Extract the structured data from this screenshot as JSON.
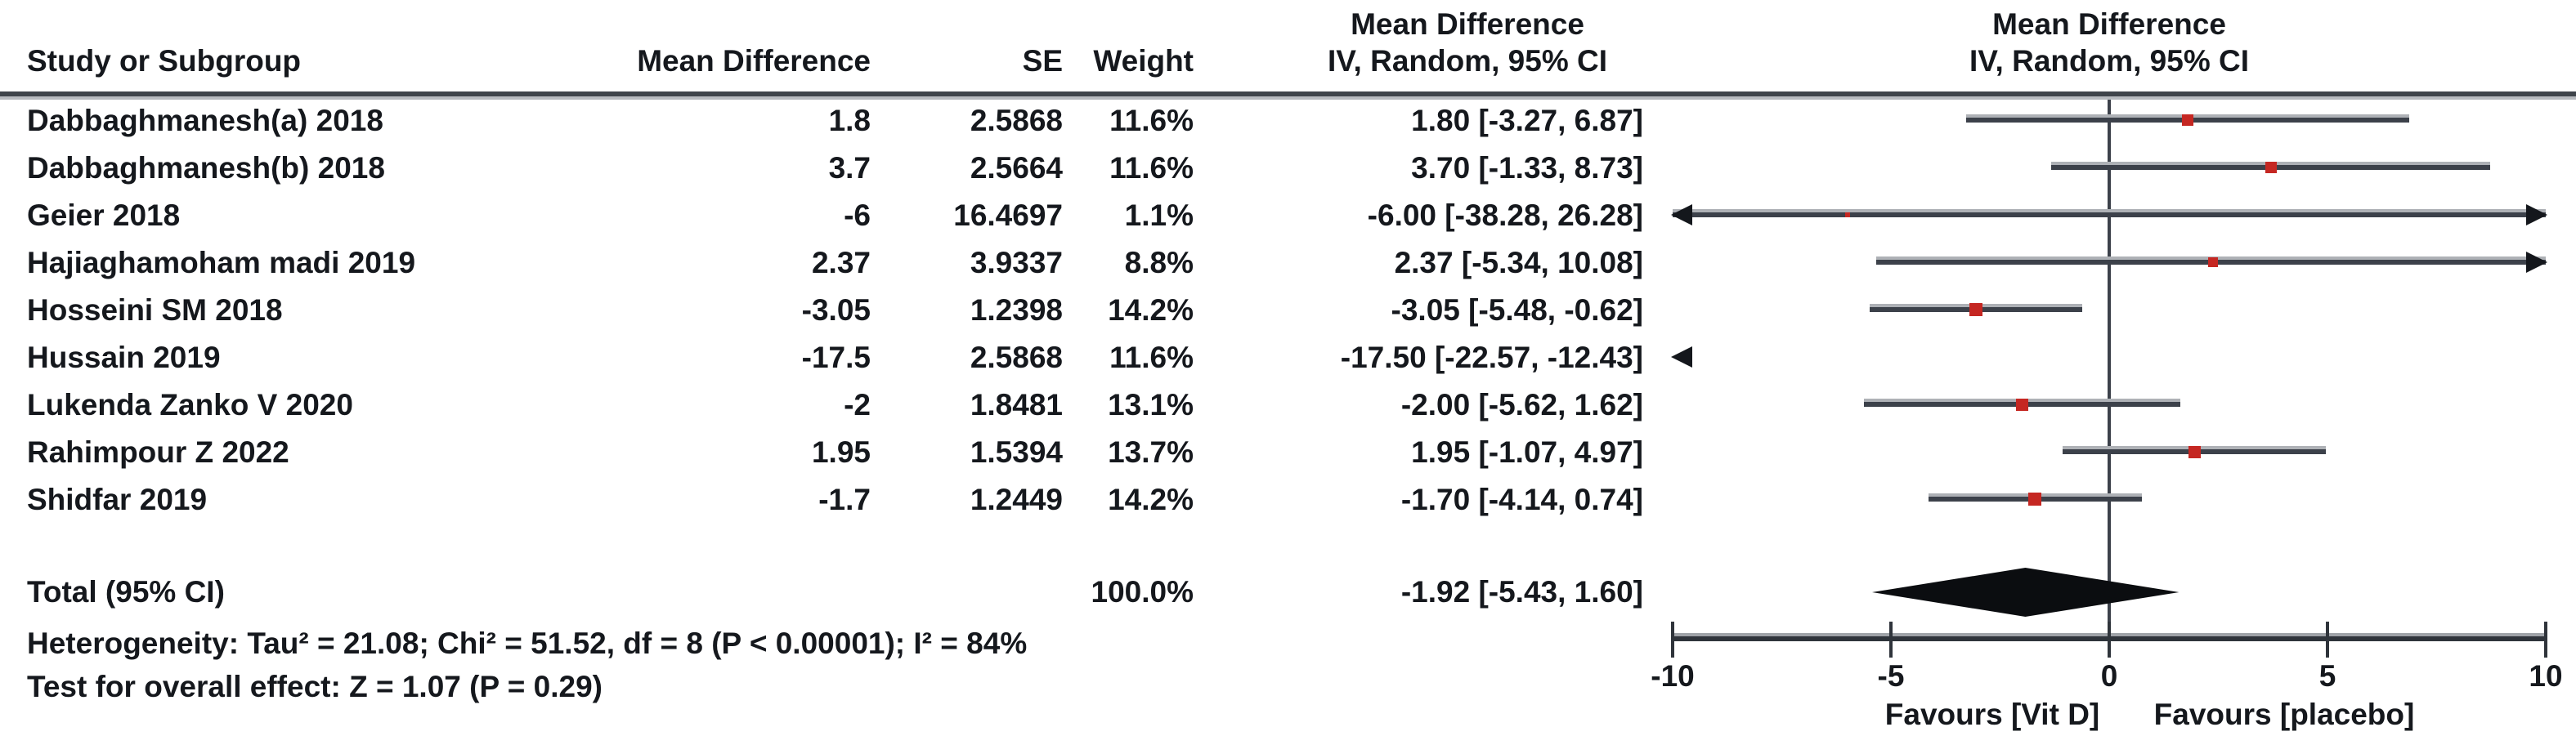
{
  "header": {
    "col_study": "Study or Subgroup",
    "col_md": "Mean Difference",
    "col_se": "SE",
    "col_weight": "Weight",
    "col_ci_line1": "Mean Difference",
    "col_ci_line2": "IV, Random, 95% CI",
    "col_plot_line1": "Mean Difference",
    "col_plot_line2": "IV, Random, 95% CI"
  },
  "rows": [
    {
      "study": "Dabbaghmanesh(a) 2018",
      "md": "1.8",
      "se": "2.5868",
      "weight": "11.6%",
      "ci": "1.80 [-3.27, 6.87]"
    },
    {
      "study": "Dabbaghmanesh(b) 2018",
      "md": "3.7",
      "se": "2.5664",
      "weight": "11.6%",
      "ci": "3.70 [-1.33, 8.73]"
    },
    {
      "study": "Geier 2018",
      "md": "-6",
      "se": "16.4697",
      "weight": "1.1%",
      "ci": "-6.00 [-38.28, 26.28]"
    },
    {
      "study": "Hajiaghamoham madi 2019",
      "md": "2.37",
      "se": "3.9337",
      "weight": "8.8%",
      "ci": "2.37 [-5.34, 10.08]"
    },
    {
      "study": "Hosseini SM 2018",
      "md": "-3.05",
      "se": "1.2398",
      "weight": "14.2%",
      "ci": "-3.05 [-5.48, -0.62]"
    },
    {
      "study": "Hussain 2019",
      "md": "-17.5",
      "se": "2.5868",
      "weight": "11.6%",
      "ci": "-17.50 [-22.57, -12.43]"
    },
    {
      "study": "Lukenda Zanko V 2020",
      "md": "-2",
      "se": "1.8481",
      "weight": "13.1%",
      "ci": "-2.00 [-5.62, 1.62]"
    },
    {
      "study": "Rahimpour Z 2022",
      "md": "1.95",
      "se": "1.5394",
      "weight": "13.7%",
      "ci": "1.95 [-1.07, 4.97]"
    },
    {
      "study": "Shidfar 2019",
      "md": "-1.7",
      "se": "1.2449",
      "weight": "14.2%",
      "ci": "-1.70 [-4.14, 0.74]"
    }
  ],
  "total": {
    "label": "Total (95% CI)",
    "weight": "100.0%",
    "ci": "-1.92 [-5.43, 1.60]"
  },
  "footer": {
    "heterogeneity": "Heterogeneity: Tau² = 21.08; Chi² = 51.52, df = 8 (P < 0.00001); I² = 84%",
    "overall_effect": "Test for overall effect: Z = 1.07 (P = 0.29)"
  },
  "axis": {
    "favours_left": "Favours [Vit D]",
    "favours_right": "Favours [placebo]"
  },
  "chart_data": {
    "type": "forest",
    "effect_measure": "Mean Difference, IV, Random, 95% CI",
    "x_range": [
      -10,
      10
    ],
    "axis_ticks": [
      -10,
      -5,
      0,
      5,
      10
    ],
    "studies": [
      {
        "name": "Dabbaghmanesh(a) 2018",
        "md": 1.8,
        "se": 2.5868,
        "weight_pct": 11.6,
        "ci": [
          -3.27,
          6.87
        ]
      },
      {
        "name": "Dabbaghmanesh(b) 2018",
        "md": 3.7,
        "se": 2.5664,
        "weight_pct": 11.6,
        "ci": [
          -1.33,
          8.73
        ]
      },
      {
        "name": "Geier 2018",
        "md": -6.0,
        "se": 16.4697,
        "weight_pct": 1.1,
        "ci": [
          -38.28,
          26.28
        ]
      },
      {
        "name": "Hajiaghamoham madi 2019",
        "md": 2.37,
        "se": 3.9337,
        "weight_pct": 8.8,
        "ci": [
          -5.34,
          10.08
        ]
      },
      {
        "name": "Hosseini SM 2018",
        "md": -3.05,
        "se": 1.2398,
        "weight_pct": 14.2,
        "ci": [
          -5.48,
          -0.62
        ]
      },
      {
        "name": "Hussain 2019",
        "md": -17.5,
        "se": 2.5868,
        "weight_pct": 11.6,
        "ci": [
          -22.57,
          -12.43
        ]
      },
      {
        "name": "Lukenda Zanko V 2020",
        "md": -2.0,
        "se": 1.8481,
        "weight_pct": 13.1,
        "ci": [
          -5.62,
          1.62
        ]
      },
      {
        "name": "Rahimpour Z 2022",
        "md": 1.95,
        "se": 1.5394,
        "weight_pct": 13.7,
        "ci": [
          -1.07,
          4.97
        ]
      },
      {
        "name": "Shidfar 2019",
        "md": -1.7,
        "se": 1.2449,
        "weight_pct": 14.2,
        "ci": [
          -4.14,
          0.74
        ]
      }
    ],
    "total": {
      "md": -1.92,
      "ci": [
        -5.43,
        1.6
      ],
      "weight_pct": 100.0
    },
    "heterogeneity": {
      "tau2": 21.08,
      "chi2": 51.52,
      "df": 8,
      "p": "< 0.00001",
      "i2_pct": 84
    },
    "overall_effect": {
      "z": 1.07,
      "p": 0.29
    },
    "colors": {
      "ci_line": "#3c414a",
      "marker": "#c52722",
      "diamond": "#0b0d10"
    }
  }
}
